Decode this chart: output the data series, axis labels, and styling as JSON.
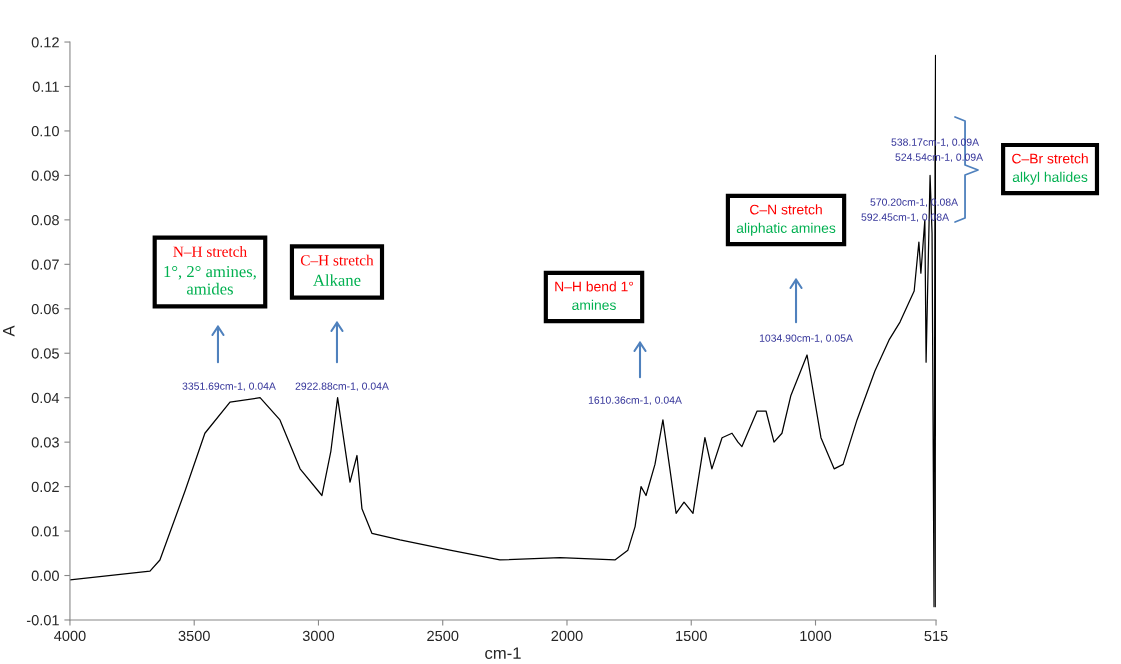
{
  "chart_data": {
    "type": "line",
    "xlabel": "cm-1",
    "ylabel": "A",
    "xlim": [
      4000,
      515
    ],
    "ylim": [
      -0.01,
      0.12
    ],
    "xticks": [
      4000,
      3500,
      3000,
      2500,
      2000,
      1500,
      1000,
      515
    ],
    "yticks": [
      {
        "value": -0.01,
        "label": "-0.01"
      },
      {
        "value": 0,
        "label": "0.00"
      },
      {
        "value": 0.01,
        "label": "0.01"
      },
      {
        "value": 0.02,
        "label": "0.02"
      },
      {
        "value": 0.03,
        "label": "0.03"
      },
      {
        "value": 0.04,
        "label": "0.04"
      },
      {
        "value": 0.05,
        "label": "0.05"
      },
      {
        "value": 0.06,
        "label": "0.06"
      },
      {
        "value": 0.07,
        "label": "0.07"
      },
      {
        "value": 0.08,
        "label": "0.08"
      },
      {
        "value": 0.09,
        "label": "0.09"
      },
      {
        "value": 0.1,
        "label": "0.10"
      },
      {
        "value": 0.11,
        "label": "0.11"
      },
      {
        "value": 0.12,
        "label": "0.12"
      }
    ],
    "series": [
      {
        "color": "#000000",
        "x": [
          4000,
          3678,
          3638,
          3537,
          3457,
          3356,
          3235,
          3155,
          3074,
          2986,
          2950,
          2923,
          2873,
          2845,
          2825,
          2785,
          2672,
          2471,
          2270,
          2028,
          1807,
          1755,
          1726,
          1702,
          1682,
          1646,
          1614,
          1586,
          1561,
          1529,
          1493,
          1445,
          1417,
          1376,
          1336,
          1312,
          1296,
          1235,
          1199,
          1167,
          1135,
          1099,
          1034,
          978,
          925,
          889,
          833,
          761,
          704,
          660,
          603,
          584,
          576,
          560,
          555,
          539,
          531,
          523,
          519,
          517,
          516,
          515
        ],
        "values": [
          -0.001,
          0.001,
          0.0035,
          0.019,
          0.032,
          0.039,
          0.04,
          0.035,
          0.024,
          0.018,
          0.028,
          0.04,
          0.021,
          0.027,
          0.015,
          0.0095,
          0.008,
          0.0057,
          0.0035,
          0.004,
          0.0035,
          0.0057,
          0.011,
          0.02,
          0.018,
          0.025,
          0.035,
          0.024,
          0.014,
          0.0165,
          0.014,
          0.031,
          0.024,
          0.031,
          0.032,
          0.03,
          0.029,
          0.037,
          0.037,
          0.03,
          0.032,
          0.0405,
          0.0496,
          0.031,
          0.024,
          0.025,
          0.035,
          0.046,
          0.053,
          0.057,
          0.064,
          0.075,
          0.068,
          0.08,
          0.048,
          0.09,
          0.077,
          -0.007,
          0.092,
          0.117,
          -0.007,
          0.0186
        ]
      }
    ],
    "annotations": [
      "3351.69cm-1, 0.04A",
      "2922.88cm-1, 0.04A",
      "1610.36cm-1, 0.04A",
      "1034.90cm-1, 0.05A",
      "538.17cm-1, 0.09A",
      "524.54cm-1, 0.09A",
      "570.20cm-1, 0.08A",
      "592.45cm-1, 0.08A",
      "N–H stretch",
      "1°, 2° amines,\namides",
      "C–H stretch",
      "Alkane",
      "N–H bend 1°",
      "amines",
      "C–N stretch",
      "aliphatic amines",
      "C–Br stretch",
      "alkyl halides"
    ]
  }
}
